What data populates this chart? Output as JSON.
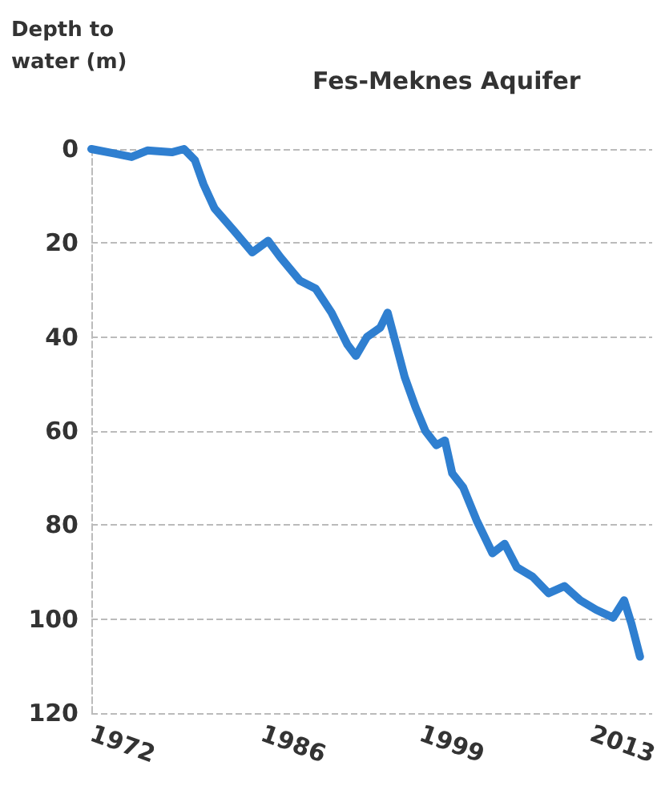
{
  "chart_data": {
    "type": "line",
    "title": "Fes-Meknes Aquifer",
    "ylabel": "Depth to water (m)",
    "x": [
      1972,
      1974,
      1975.3,
      1976.6,
      1978.6,
      1979.6,
      1980.5,
      1981.2,
      1982.1,
      1983.8,
      1985.2,
      1986.5,
      1987.5,
      1989.1,
      1990.4,
      1991.7,
      1993,
      1993.7,
      1994.6,
      1995.7,
      1996.3,
      1997,
      1997.7,
      1998.6,
      1999.4,
      2000.3,
      2001,
      2001.6,
      2002.5,
      2003.6,
      2004.9,
      2005.9,
      2006.9,
      2008.2,
      2009.5,
      2010.8,
      2012.1,
      2013.4,
      2014.8,
      2015.7,
      2016.3,
      2017
    ],
    "series": [
      {
        "color": "#2f7fd0",
        "values": [
          0,
          1,
          1.7,
          0.3,
          0.7,
          0,
          2.4,
          7.5,
          12.6,
          17.7,
          22,
          19.5,
          23,
          28,
          29.7,
          34.8,
          41.6,
          44,
          40,
          38,
          34.8,
          41.6,
          48.5,
          55,
          60,
          63,
          62,
          69,
          72,
          79,
          86,
          84,
          89,
          91,
          94.5,
          93,
          96,
          98,
          99.7,
          96,
          101,
          108
        ]
      }
    ],
    "xlim": [
      1972,
      2018
    ],
    "xticks": [
      1972,
      1986,
      1999,
      2013
    ],
    "ylim": [
      120,
      0
    ],
    "yticks": [
      0,
      20,
      40,
      60,
      80,
      100,
      120
    ],
    "grid": "y",
    "marker": "none",
    "line_style": "solid"
  }
}
